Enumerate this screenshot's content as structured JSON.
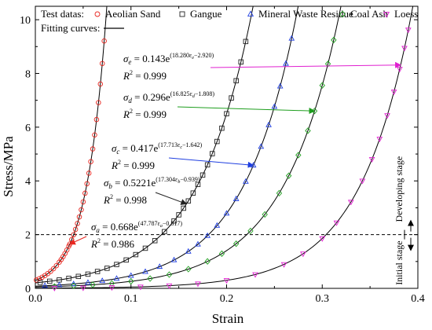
{
  "chart_data": {
    "type": "scatter",
    "xlabel": "Strain",
    "ylabel": "Stress/MPa",
    "xlim": [
      0.0,
      0.4
    ],
    "ylim": [
      0,
      10.5
    ],
    "x_ticks": [
      "0.0",
      "0.1",
      "0.2",
      "0.3",
      "0.4"
    ],
    "y_ticks": [
      "0",
      "2",
      "4",
      "6",
      "8",
      "10"
    ],
    "legend": {
      "placement": "top",
      "test_datas_label": "Test datas:",
      "fitting_label": "Fitting curves:"
    },
    "threshold": {
      "y": 2,
      "label_lower": "Initial stage",
      "label_upper": "Developing stage"
    },
    "series": [
      {
        "name": "Aeolian Sand",
        "marker": "circle",
        "color": "#e8261f",
        "a": 0.668,
        "b": 47.787,
        "c": 0.817,
        "x": [
          0.001,
          0.004,
          0.007,
          0.01,
          0.013,
          0.016,
          0.019,
          0.022,
          0.025,
          0.027,
          0.029,
          0.031,
          0.033,
          0.035,
          0.036,
          0.038,
          0.04,
          0.042,
          0.044,
          0.046,
          0.048,
          0.05,
          0.052,
          0.054,
          0.056,
          0.058,
          0.06,
          0.062,
          0.064,
          0.066,
          0.068,
          0.07,
          0.072
        ]
      },
      {
        "name": "Gangue",
        "marker": "square",
        "color": "#222222",
        "a": 0.5221,
        "b": 17.304,
        "c": 0.939,
        "x": [
          0.005,
          0.015,
          0.025,
          0.035,
          0.045,
          0.055,
          0.065,
          0.075,
          0.085,
          0.095,
          0.105,
          0.115,
          0.125,
          0.135,
          0.145,
          0.15,
          0.155,
          0.16,
          0.165,
          0.17,
          0.175,
          0.18,
          0.185,
          0.19,
          0.195,
          0.2,
          0.205,
          0.21,
          0.215,
          0.22
        ]
      },
      {
        "name": "Mineral Waste Residue",
        "marker": "triangle",
        "color": "#1f3fe0",
        "a": 0.417,
        "b": 17.713,
        "c": 1.642,
        "x": [
          0.01,
          0.025,
          0.04,
          0.055,
          0.07,
          0.085,
          0.1,
          0.115,
          0.13,
          0.145,
          0.16,
          0.17,
          0.18,
          0.19,
          0.2,
          0.21,
          0.22,
          0.228,
          0.236,
          0.244,
          0.25,
          0.256,
          0.262,
          0.268
        ]
      },
      {
        "name": "Coal Ash",
        "marker": "diamond",
        "color": "#1e9e1e",
        "a": 0.296,
        "b": 16.825,
        "c": 1.808,
        "x": [
          0.02,
          0.04,
          0.06,
          0.08,
          0.1,
          0.12,
          0.14,
          0.16,
          0.18,
          0.195,
          0.21,
          0.225,
          0.24,
          0.255,
          0.265,
          0.275,
          0.285,
          0.292,
          0.3,
          0.306,
          0.312
        ]
      },
      {
        "name": "Loess",
        "marker": "triangle-down",
        "color": "#e020d0",
        "a": 0.143,
        "b": 18.28,
        "c": 2.92,
        "x": [
          0.02,
          0.05,
          0.08,
          0.11,
          0.14,
          0.17,
          0.2,
          0.23,
          0.26,
          0.28,
          0.3,
          0.315,
          0.33,
          0.342,
          0.352,
          0.36,
          0.368,
          0.375,
          0.381,
          0.386,
          0.39
        ]
      }
    ],
    "annotations": [
      {
        "series": "Loess",
        "sub": "e",
        "a": "0.143",
        "exp": "(18.280ε",
        "exp_sub": "e",
        "exp_tail": "−2.920)",
        "r2": "0.999",
        "arrow_to_x": 0.382
      },
      {
        "series": "Coal Ash",
        "sub": "d",
        "a": "0.296",
        "exp": "(16.825ε",
        "exp_sub": "d",
        "exp_tail": "−1.808)",
        "r2": "0.999",
        "arrow_to_x": 0.292
      },
      {
        "series": "Mineral Waste Residue",
        "sub": "c",
        "a": "0.417",
        "exp": "(17.713ε",
        "exp_sub": "c",
        "exp_tail": "−1.642)",
        "r2": "0.999",
        "arrow_to_x": 0.228
      },
      {
        "series": "Gangue",
        "sub": "b",
        "a": "0.5221",
        "exp": "(17.304ε",
        "exp_sub": "b",
        "exp_tail": "−0.939)",
        "r2": "0.998",
        "arrow_to_x": 0.158
      },
      {
        "series": "Aeolian Sand",
        "sub": "a",
        "a": "0.668",
        "exp": "(47.787ε",
        "exp_sub": "a",
        "exp_tail": "−0.817)",
        "r2": "0.986",
        "arrow_to_x": 0.036
      }
    ]
  }
}
